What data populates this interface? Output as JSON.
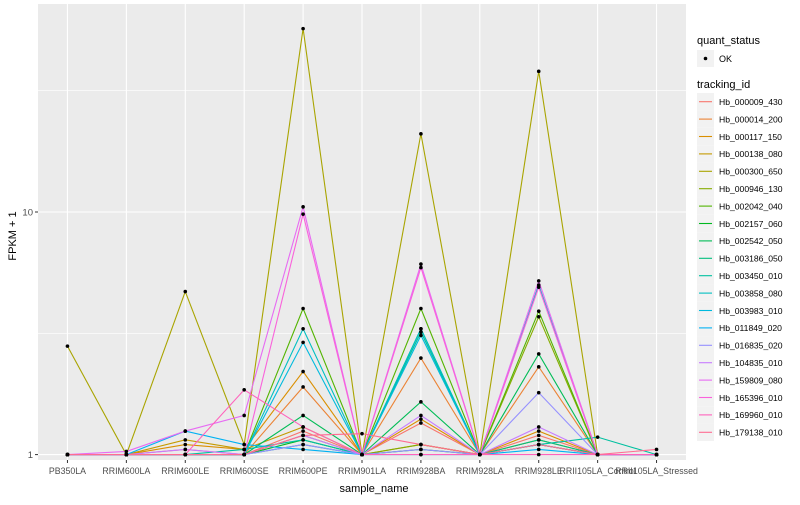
{
  "chart_data": {
    "type": "line",
    "xlabel": "sample_name",
    "ylabel": "FPKM + 1",
    "y_scale": "log10",
    "ylim": [
      0.95,
      72
    ],
    "y_ticks": [
      1,
      10
    ],
    "y_tick_labels": [
      "1",
      "10"
    ],
    "grid": true,
    "categories": [
      "PB350LA",
      "RRIM600LA",
      "RRIM600LE",
      "RRIM600SE",
      "RRIM600PE",
      "RRIM901LA",
      "RRIM928BA",
      "RRIM928LA",
      "RRIM928LE",
      "RRII105LA_Control",
      "RRII105LA_Stressed"
    ],
    "shape_legend": {
      "title": "quant_status",
      "items": [
        "OK"
      ]
    },
    "color_legend_title": "tracking_id",
    "legend_position": "right",
    "series": [
      {
        "name": "Hb_000009_430",
        "color": "#F8766D",
        "values": [
          1.0,
          1.0,
          1.05,
          1.0,
          1.25,
          1.0,
          1.35,
          1.0,
          1.2,
          1.0,
          1.0
        ]
      },
      {
        "name": "Hb_000014_200",
        "color": "#EB8335",
        "values": [
          1.0,
          1.0,
          1.0,
          1.0,
          1.9,
          1.0,
          2.5,
          1.0,
          2.3,
          1.0,
          1.0
        ]
      },
      {
        "name": "Hb_000117_150",
        "color": "#DA8F00",
        "values": [
          1.0,
          1.0,
          1.1,
          1.05,
          2.2,
          1.0,
          1.4,
          1.0,
          1.25,
          1.0,
          1.0
        ]
      },
      {
        "name": "Hb_000138_080",
        "color": "#C49A00",
        "values": [
          1.0,
          1.0,
          1.15,
          1.05,
          1.3,
          1.0,
          1.1,
          1.0,
          1.15,
          1.0,
          1.0
        ]
      },
      {
        "name": "Hb_000300_650",
        "color": "#A9A400",
        "values": [
          2.8,
          1.0,
          4.7,
          1.1,
          57.0,
          1.0,
          21.0,
          1.0,
          38.0,
          1.0,
          1.0
        ]
      },
      {
        "name": "Hb_000946_130",
        "color": "#86AC00",
        "values": [
          1.0,
          1.0,
          1.0,
          1.0,
          1.2,
          1.0,
          1.1,
          1.0,
          3.7,
          1.0,
          1.0
        ]
      },
      {
        "name": "Hb_002042_040",
        "color": "#53B400",
        "values": [
          1.0,
          1.0,
          1.0,
          1.0,
          4.0,
          1.0,
          4.0,
          1.0,
          3.9,
          1.0,
          1.0
        ]
      },
      {
        "name": "Hb_002157_060",
        "color": "#00B81F",
        "values": [
          1.0,
          1.0,
          1.0,
          1.0,
          1.15,
          1.0,
          1.05,
          1.0,
          1.1,
          1.0,
          1.0
        ]
      },
      {
        "name": "Hb_002542_050",
        "color": "#00BC56",
        "values": [
          1.0,
          1.0,
          1.0,
          1.0,
          1.45,
          1.0,
          1.65,
          1.0,
          2.6,
          1.0,
          1.0
        ]
      },
      {
        "name": "Hb_003186_050",
        "color": "#00BF7D",
        "values": [
          1.0,
          1.0,
          1.0,
          1.0,
          1.1,
          1.0,
          3.3,
          1.0,
          1.15,
          1.0,
          1.0
        ]
      },
      {
        "name": "Hb_003450_010",
        "color": "#00C0A0",
        "values": [
          1.0,
          1.0,
          1.0,
          1.05,
          1.15,
          1.0,
          3.2,
          1.0,
          1.1,
          1.18,
          1.0
        ]
      },
      {
        "name": "Hb_003858_080",
        "color": "#00BFC1",
        "values": [
          1.0,
          1.0,
          1.0,
          1.0,
          3.3,
          1.0,
          3.3,
          1.0,
          5.0,
          1.0,
          1.0
        ]
      },
      {
        "name": "Hb_003983_010",
        "color": "#00BADE",
        "values": [
          1.0,
          1.0,
          1.0,
          1.0,
          2.9,
          1.0,
          3.1,
          1.0,
          1.1,
          1.0,
          1.0
        ]
      },
      {
        "name": "Hb_011849_020",
        "color": "#00B2F3",
        "values": [
          1.0,
          1.0,
          1.25,
          1.1,
          1.05,
          1.0,
          1.0,
          1.0,
          1.05,
          1.0,
          1.0
        ]
      },
      {
        "name": "Hb_016835_020",
        "color": "#9590FF",
        "values": [
          1.0,
          1.0,
          1.0,
          1.0,
          1.1,
          1.0,
          1.05,
          1.0,
          1.8,
          1.0,
          1.0
        ]
      },
      {
        "name": "Hb_104835_010",
        "color": "#C77CFF",
        "values": [
          1.0,
          1.0,
          1.05,
          1.0,
          1.2,
          1.0,
          1.45,
          1.0,
          1.3,
          1.0,
          1.0
        ]
      },
      {
        "name": "Hb_159809_080",
        "color": "#E76BF3",
        "values": [
          1.0,
          1.03,
          1.25,
          1.45,
          10.5,
          1.0,
          6.1,
          1.0,
          5.2,
          1.0,
          1.0
        ]
      },
      {
        "name": "Hb_165396_010",
        "color": "#FA62DB",
        "values": [
          1.0,
          1.0,
          1.0,
          1.0,
          9.8,
          1.0,
          5.9,
          1.0,
          4.9,
          1.0,
          1.0
        ]
      },
      {
        "name": "Hb_169960_010",
        "color": "#FF62BC",
        "values": [
          1.0,
          1.0,
          1.0,
          1.85,
          1.3,
          1.0,
          1.0,
          1.0,
          1.0,
          1.0,
          1.0
        ]
      },
      {
        "name": "Hb_179138_010",
        "color": "#FF6C91",
        "values": [
          1.0,
          1.0,
          1.0,
          1.0,
          1.2,
          1.22,
          1.1,
          1.0,
          1.1,
          1.0,
          1.05
        ]
      }
    ]
  }
}
